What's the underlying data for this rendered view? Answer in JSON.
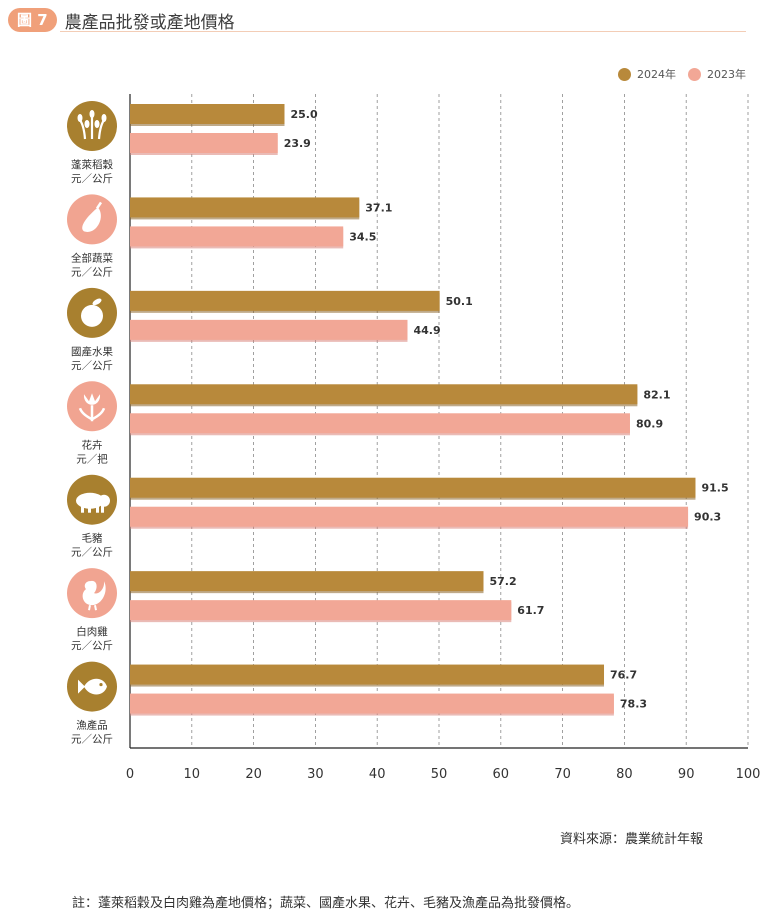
{
  "header": {
    "figure_label": "圖 7",
    "title": "農產品批發或產地價格"
  },
  "colors": {
    "accent_2024": "#b8893b",
    "accent_2023": "#f2a796",
    "icon_2024": "#a8802f",
    "icon_2023": "#f1a491",
    "grid": "#888888"
  },
  "chart_data": {
    "type": "bar",
    "orientation": "horizontal",
    "title": "",
    "xlabel": "",
    "ylabel": "",
    "xlim": [
      0,
      100
    ],
    "xticks": [
      0,
      10,
      20,
      30,
      40,
      50,
      60,
      70,
      80,
      90,
      100
    ],
    "grid": "vertical dashed",
    "legend_position": "top-right",
    "categories": [
      {
        "name": "蓬萊稻穀",
        "unit": "元／公斤",
        "icon": "rice-plant-icon",
        "icon_color": "2024"
      },
      {
        "name": "全部蔬菜",
        "unit": "元／公斤",
        "icon": "eggplant-icon",
        "icon_color": "2023"
      },
      {
        "name": "國產水果",
        "unit": "元／公斤",
        "icon": "apple-icon",
        "icon_color": "2024"
      },
      {
        "name": "花卉",
        "unit": "元／把",
        "icon": "tulip-icon",
        "icon_color": "2023"
      },
      {
        "name": "毛豬",
        "unit": "元／公斤",
        "icon": "pig-icon",
        "icon_color": "2024"
      },
      {
        "name": "白肉雞",
        "unit": "元／公斤",
        "icon": "chicken-icon",
        "icon_color": "2023"
      },
      {
        "name": "漁產品",
        "unit": "元／公斤",
        "icon": "fish-icon",
        "icon_color": "2024"
      }
    ],
    "series": [
      {
        "name": "2024年",
        "color": "#b8893b",
        "values": [
          25.0,
          37.1,
          50.1,
          82.1,
          91.5,
          57.2,
          76.7
        ]
      },
      {
        "name": "2023年",
        "color": "#f2a796",
        "values": [
          23.9,
          34.5,
          44.9,
          80.9,
          90.3,
          61.7,
          78.3
        ]
      }
    ]
  },
  "source": "資料來源：農業統計年報",
  "note": "註：蓬萊稻穀及白肉雞為產地價格；蔬菜、國產水果、花卉、毛豬及漁產品為批發價格。"
}
